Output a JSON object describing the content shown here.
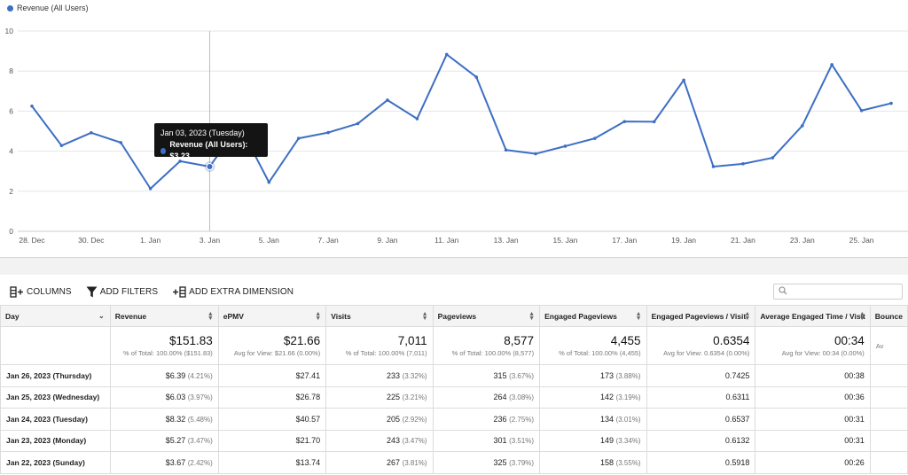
{
  "chart_data": {
    "type": "line",
    "series": [
      {
        "name": "Revenue (All Users)",
        "color": "#3d6fc4",
        "values": [
          6.25,
          4.28,
          4.92,
          4.43,
          2.13,
          3.5,
          3.23,
          5.3,
          2.45,
          4.64,
          4.93,
          5.38,
          6.55,
          5.62,
          8.83,
          7.7,
          4.06,
          3.87,
          4.25,
          4.64,
          5.48,
          5.47,
          7.55,
          3.23,
          3.37,
          3.67,
          5.27,
          8.32,
          6.03,
          6.39
        ]
      }
    ],
    "xlim": [
      0,
      29
    ],
    "x_tick_labels": [
      {
        "index": 0,
        "label": "28. Dec"
      },
      {
        "index": 2,
        "label": "30. Dec"
      },
      {
        "index": 4,
        "label": "1. Jan"
      },
      {
        "index": 6,
        "label": "3. Jan"
      },
      {
        "index": 8,
        "label": "5. Jan"
      },
      {
        "index": 10,
        "label": "7. Jan"
      },
      {
        "index": 12,
        "label": "9. Jan"
      },
      {
        "index": 14,
        "label": "11. Jan"
      },
      {
        "index": 16,
        "label": "13. Jan"
      },
      {
        "index": 18,
        "label": "15. Jan"
      },
      {
        "index": 20,
        "label": "17. Jan"
      },
      {
        "index": 22,
        "label": "19. Jan"
      },
      {
        "index": 24,
        "label": "21. Jan"
      },
      {
        "index": 26,
        "label": "23. Jan"
      },
      {
        "index": 28,
        "label": "25. Jan"
      }
    ],
    "y_ticks": [
      0,
      2,
      4,
      6,
      8,
      10
    ],
    "ylim": [
      0,
      10
    ],
    "grid": true,
    "legend": "top-left",
    "tooltip": {
      "index": 6,
      "title": "Jan 03, 2023 (Tuesday)",
      "text": "Revenue (All Users): $3.23"
    }
  },
  "legend_label": "Revenue (All Users)",
  "toolbar": {
    "columns_label": "COLUMNS",
    "filters_label": "ADD FILTERS",
    "dimension_label": "ADD EXTRA DIMENSION",
    "search_placeholder": ""
  },
  "table": {
    "columns": [
      {
        "label": "Day",
        "width": 125
      },
      {
        "label": "Revenue",
        "width": 124
      },
      {
        "label": "ePMV",
        "width": 124
      },
      {
        "label": "Visits",
        "width": 124
      },
      {
        "label": "Pageviews",
        "width": 124
      },
      {
        "label": "Engaged Pageviews",
        "width": 124
      },
      {
        "label": "Engaged Pageviews / Visit",
        "width": 124
      },
      {
        "label": "Average Engaged Time / Visit",
        "width": 124
      },
      {
        "label": "Bounce",
        "width": 40
      }
    ],
    "totals": [
      {
        "value": "",
        "sub": ""
      },
      {
        "value": "$151.83",
        "sub": "% of Total: 100.00% ($151.83)"
      },
      {
        "value": "$21.66",
        "sub": "Avg for View: $21.66 (0.00%)"
      },
      {
        "value": "7,011",
        "sub": "% of Total: 100.00% (7,011)"
      },
      {
        "value": "8,577",
        "sub": "% of Total: 100.00% (8,577)"
      },
      {
        "value": "4,455",
        "sub": "% of Total: 100.00% (4,455)"
      },
      {
        "value": "0.6354",
        "sub": "Avg for View: 0.6354 (0.00%)"
      },
      {
        "value": "00:34",
        "sub": "Avg for View: 00:34 (0.00%)"
      },
      {
        "value": "",
        "sub": "Av"
      }
    ],
    "rows": [
      {
        "day": "Jan 26, 2023 (Thursday)",
        "revenue": "$6.39",
        "revenue_pct": "(4.21%)",
        "epmv": "$27.41",
        "visits": "233",
        "visits_pct": "(3.32%)",
        "pageviews": "315",
        "pageviews_pct": "(3.67%)",
        "engaged": "173",
        "engaged_pct": "(3.88%)",
        "epv": "0.7425",
        "time": "00:38"
      },
      {
        "day": "Jan 25, 2023 (Wednesday)",
        "revenue": "$6.03",
        "revenue_pct": "(3.97%)",
        "epmv": "$26.78",
        "visits": "225",
        "visits_pct": "(3.21%)",
        "pageviews": "264",
        "pageviews_pct": "(3.08%)",
        "engaged": "142",
        "engaged_pct": "(3.19%)",
        "epv": "0.6311",
        "time": "00:36"
      },
      {
        "day": "Jan 24, 2023 (Tuesday)",
        "revenue": "$8.32",
        "revenue_pct": "(5.48%)",
        "epmv": "$40.57",
        "visits": "205",
        "visits_pct": "(2.92%)",
        "pageviews": "236",
        "pageviews_pct": "(2.75%)",
        "engaged": "134",
        "engaged_pct": "(3.01%)",
        "epv": "0.6537",
        "time": "00:31"
      },
      {
        "day": "Jan 23, 2023 (Monday)",
        "revenue": "$5.27",
        "revenue_pct": "(3.47%)",
        "epmv": "$21.70",
        "visits": "243",
        "visits_pct": "(3.47%)",
        "pageviews": "301",
        "pageviews_pct": "(3.51%)",
        "engaged": "149",
        "engaged_pct": "(3.34%)",
        "epv": "0.6132",
        "time": "00:31"
      },
      {
        "day": "Jan 22, 2023 (Sunday)",
        "revenue": "$3.67",
        "revenue_pct": "(2.42%)",
        "epmv": "$13.74",
        "visits": "267",
        "visits_pct": "(3.81%)",
        "pageviews": "325",
        "pageviews_pct": "(3.79%)",
        "engaged": "158",
        "engaged_pct": "(3.55%)",
        "epv": "0.5918",
        "time": "00:26"
      }
    ]
  },
  "icons": {
    "columns": "columns-icon",
    "filter": "filter-icon",
    "dimension": "add-dimension-icon",
    "search": "search-icon"
  }
}
